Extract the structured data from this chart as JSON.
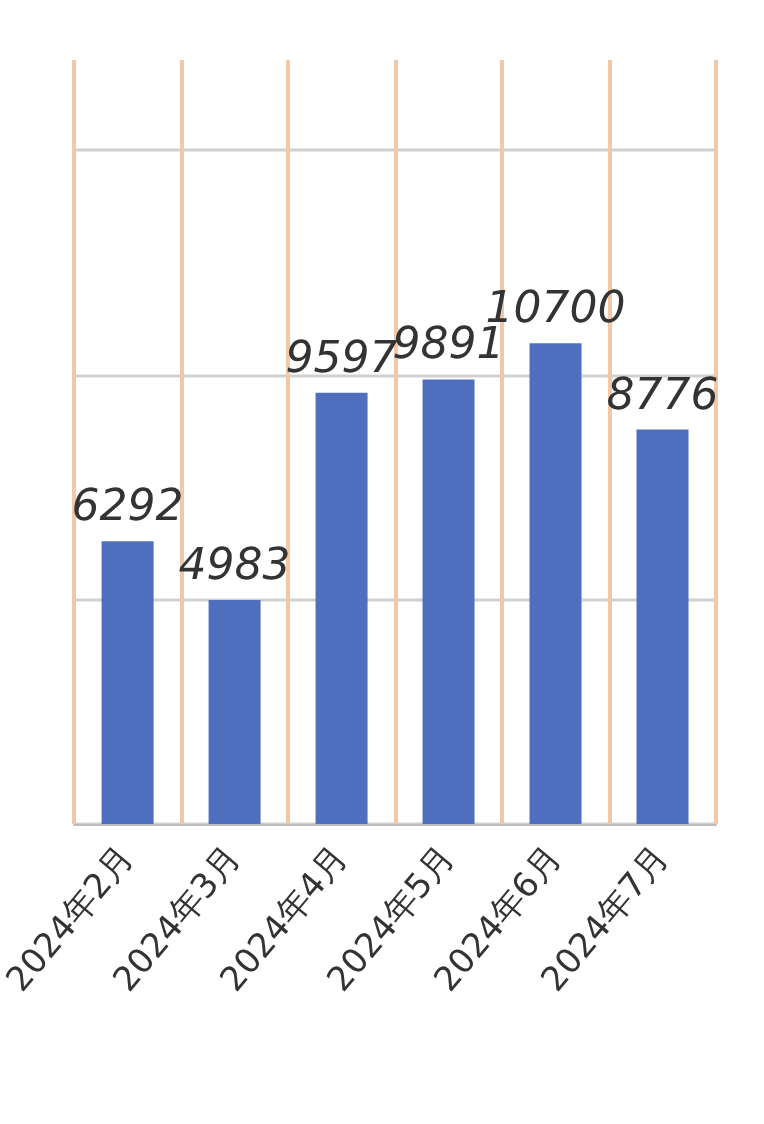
{
  "chart_data": {
    "type": "bar",
    "categories": [
      "2024年2月",
      "2024年3月",
      "2024年4月",
      "2024年5月",
      "2024年6月",
      "2024年7月"
    ],
    "values": [
      6292,
      4983,
      9597,
      9891,
      10700,
      8776
    ],
    "color": "#4f6fbe",
    "data_labels": true,
    "ylim": [
      0,
      17000
    ],
    "yticks": [
      0,
      5000,
      10000,
      15000
    ],
    "grid": true,
    "tick_labels": "x"
  }
}
